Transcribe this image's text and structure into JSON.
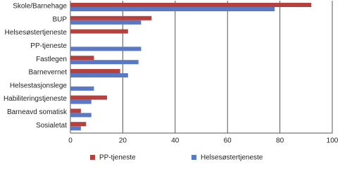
{
  "chart_data": {
    "type": "bar",
    "orientation": "horizontal",
    "categories": [
      "Skole/Barnehage",
      "BUP",
      "Helsesøstertjeneste",
      "PP-tjeneste",
      "Fastlegen",
      "Barnevernet",
      "Helsestasjonslege",
      "Habiliteringstjeneste",
      "Barneavd somatisk",
      "Sosialetat"
    ],
    "series": [
      {
        "name": "PP-tjeneste",
        "color": "#b5413f",
        "values": [
          92,
          31,
          22,
          null,
          9,
          19,
          null,
          14,
          4,
          6
        ]
      },
      {
        "name": "Helsesøstertjeneste",
        "color": "#5a79c4",
        "values": [
          78,
          27,
          null,
          27,
          26,
          22,
          9,
          8,
          8,
          4
        ]
      }
    ],
    "xlim": [
      0,
      100
    ],
    "xticks": [
      0,
      20,
      40,
      60,
      80,
      100
    ],
    "grid": true
  }
}
